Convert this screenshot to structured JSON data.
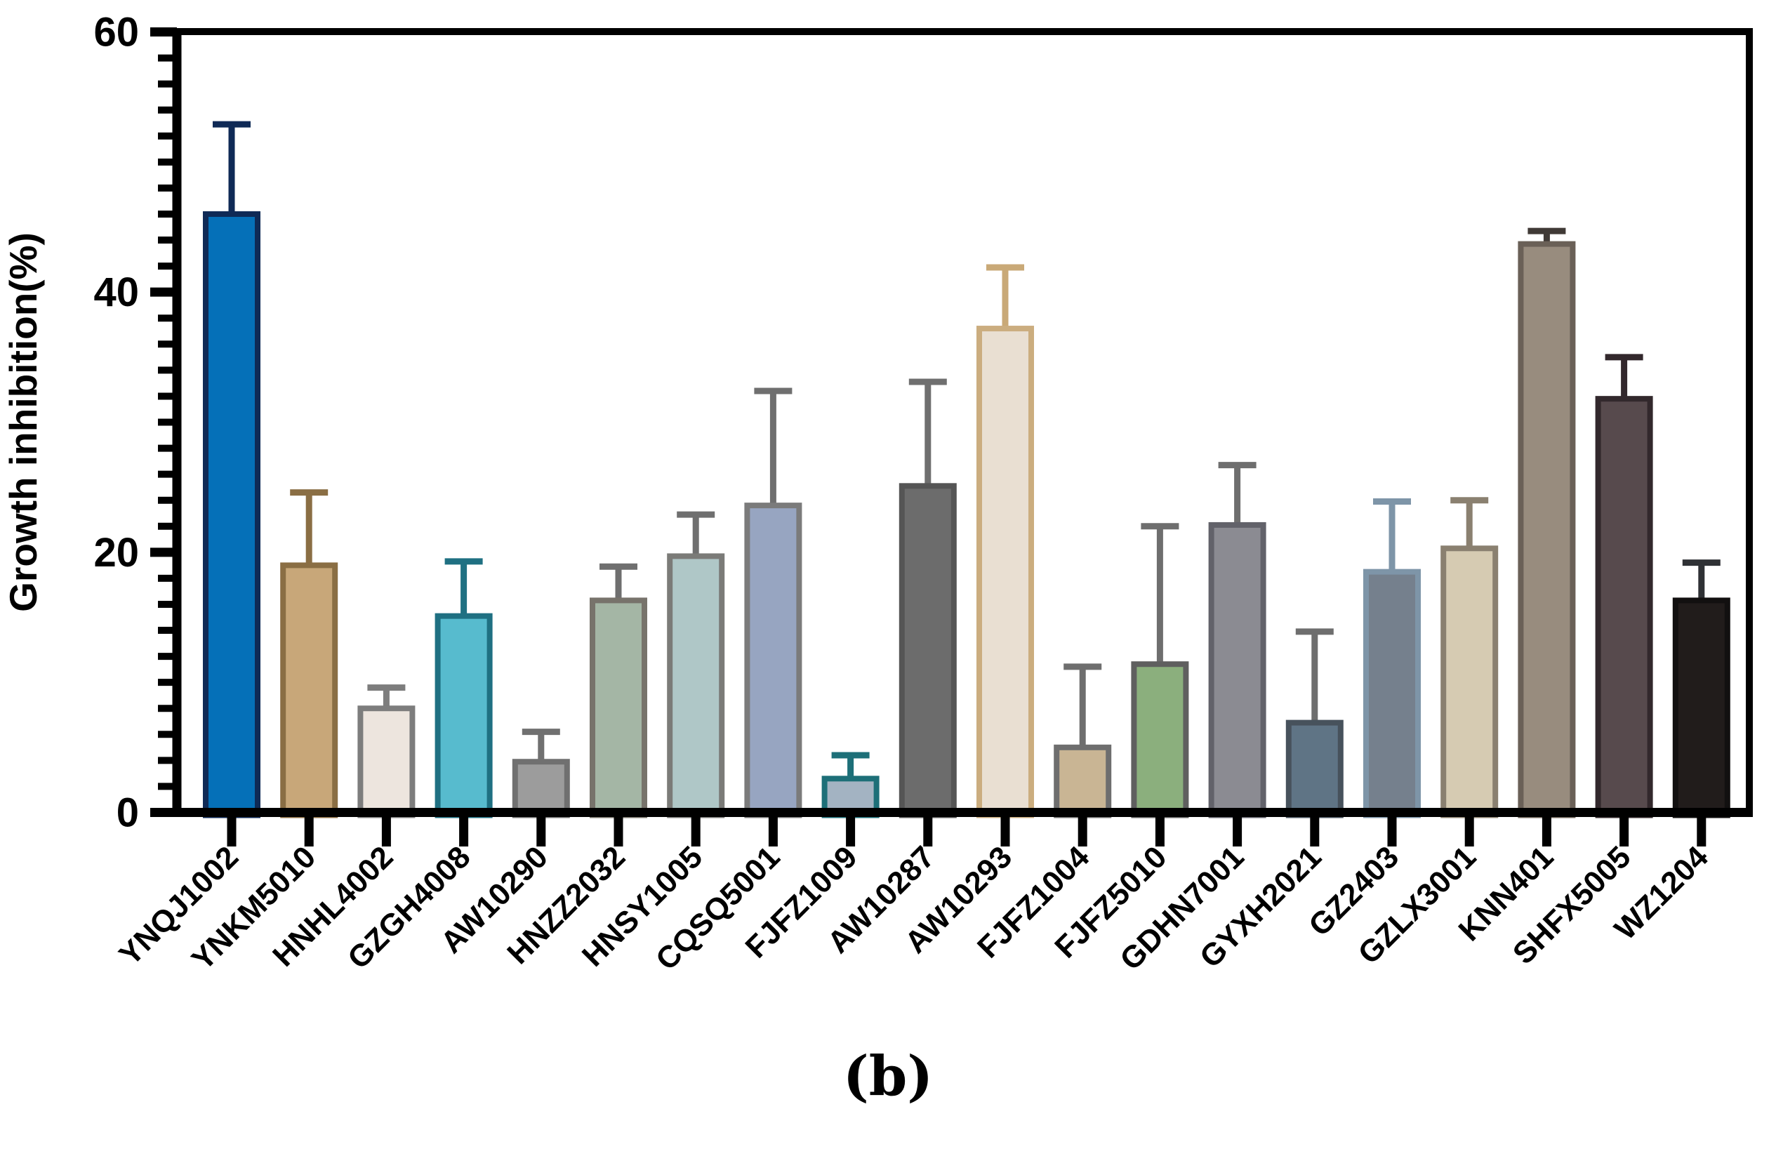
{
  "figure": {
    "caption": "(b)",
    "background": "#ffffff",
    "axis_color": "#000000",
    "text_color": "#000000"
  },
  "chart_data": {
    "type": "bar",
    "title": "",
    "xlabel": "",
    "ylabel": "Growth inhibition(%)",
    "ylim": [
      0,
      60
    ],
    "yticks": [
      0,
      20,
      40,
      60
    ],
    "ytick_labels": [
      "0",
      "20",
      "40",
      "60"
    ],
    "minor_tick_step": 2,
    "grid": false,
    "legend_position": "none",
    "error_bars": "plus_sd_caps",
    "categories": [
      "YNQJ1002",
      "YNKM5010",
      "HNHL4002",
      "GZGH4008",
      "AW10290",
      "HNZZ2032",
      "HNSY1005",
      "CQSQ5001",
      "FJFZ1009",
      "AW10287",
      "AW10293",
      "FJFZ1004",
      "FJFZ5010",
      "GDHN7001",
      "GYXH2021",
      "GZ2403",
      "GZLX3001",
      "KNN401",
      "SHFX5005",
      "WZ1204"
    ],
    "values": [
      46.0,
      19.0,
      8.0,
      15.1,
      3.9,
      16.3,
      19.7,
      23.6,
      2.6,
      25.1,
      37.2,
      5.0,
      11.4,
      22.1,
      6.9,
      18.5,
      20.3,
      43.7,
      31.8,
      16.3
    ],
    "errors_plus": [
      6.9,
      5.6,
      1.6,
      4.2,
      2.3,
      2.6,
      3.2,
      8.8,
      1.8,
      8.0,
      4.7,
      6.2,
      10.6,
      4.6,
      7.0,
      5.4,
      3.7,
      1.0,
      3.2,
      2.9
    ],
    "bar_styles": [
      {
        "fill": "#0570B8",
        "border": "#0F2A56",
        "error": "#0F2A56"
      },
      {
        "fill": "#C8A779",
        "border": "#8A6E44",
        "error": "#8A6E44"
      },
      {
        "fill": "#EDE5DE",
        "border": "#7D7D7D",
        "error": "#7D7D7D"
      },
      {
        "fill": "#57BBCE",
        "border": "#1F7082",
        "error": "#1F7082"
      },
      {
        "fill": "#9C9C9C",
        "border": "#707070",
        "error": "#707070"
      },
      {
        "fill": "#A4B6A5",
        "border": "#77736B",
        "error": "#6F6F6F"
      },
      {
        "fill": "#AFC7C7",
        "border": "#7B7B78",
        "error": "#6F6F6F"
      },
      {
        "fill": "#97A5C1",
        "border": "#7B7B7B",
        "error": "#6F6F6F"
      },
      {
        "fill": "#A3B3C2",
        "border": "#1D6F78",
        "error": "#1D6F78"
      },
      {
        "fill": "#6C6C6C",
        "border": "#555555",
        "error": "#6F6F6F"
      },
      {
        "fill": "#E9DFD2",
        "border": "#CBAD7F",
        "error": "#C9A977"
      },
      {
        "fill": "#C9B594",
        "border": "#6E6E6E",
        "error": "#6E6E6E"
      },
      {
        "fill": "#8BAF7D",
        "border": "#5F5F5F",
        "error": "#6E6E6E"
      },
      {
        "fill": "#8B8B92",
        "border": "#62626A",
        "error": "#6E6E6E"
      },
      {
        "fill": "#5F7485",
        "border": "#47525C",
        "error": "#6E6E6E"
      },
      {
        "fill": "#75808D",
        "border": "#7E95A8",
        "error": "#7E95A8"
      },
      {
        "fill": "#D6CBB2",
        "border": "#8A8070",
        "error": "#8A8070"
      },
      {
        "fill": "#988C7E",
        "border": "#6A6057",
        "error": "#403A36"
      },
      {
        "fill": "#574A4D",
        "border": "#32282C",
        "error": "#32282C"
      },
      {
        "fill": "#211C1B",
        "border": "#121010",
        "error": "#2F3135"
      }
    ]
  }
}
